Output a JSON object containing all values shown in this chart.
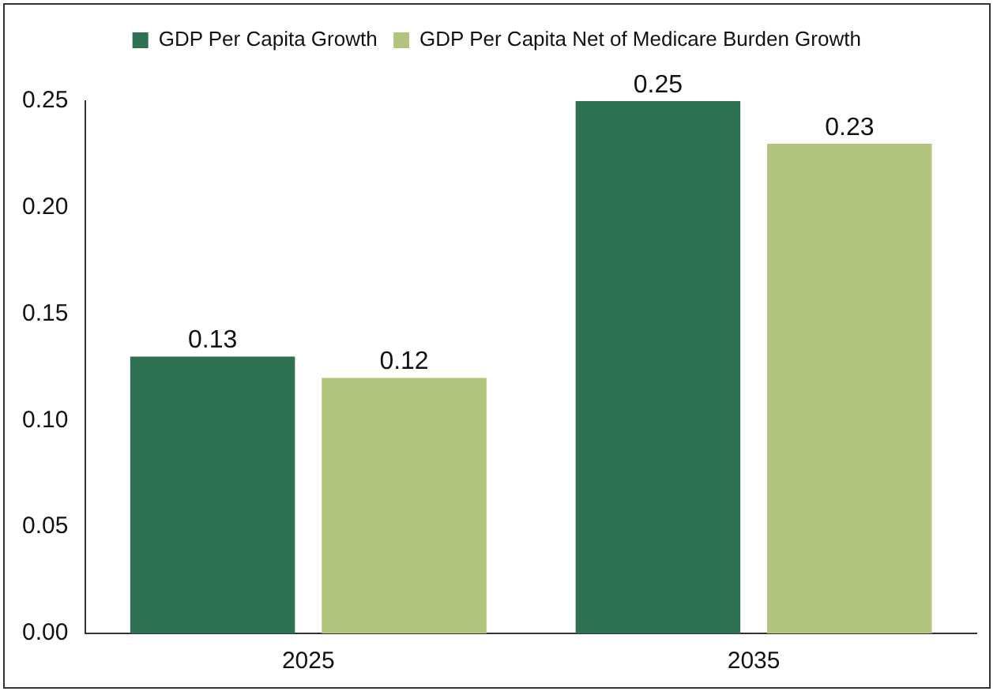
{
  "chart_data": {
    "type": "bar",
    "categories": [
      "2025",
      "2035"
    ],
    "series": [
      {
        "name": "GDP Per Capita Growth",
        "color": "#2e7152",
        "values": [
          0.13,
          0.25
        ]
      },
      {
        "name": "GDP Per Capita Net of Medicare Burden Growth",
        "color": "#b3c47f",
        "values": [
          0.12,
          0.23
        ]
      }
    ],
    "ylim": [
      0,
      0.25
    ],
    "yticks": [
      {
        "value": 0,
        "label": "0.00"
      },
      {
        "value": 0.05,
        "label": "0.05"
      },
      {
        "value": 0.1,
        "label": "0.10"
      },
      {
        "value": 0.15,
        "label": "0.15"
      },
      {
        "value": 0.2,
        "label": "0.20"
      },
      {
        "value": 0.25,
        "label": "0.25"
      }
    ],
    "grid": false,
    "legend": "top",
    "data_labels": true
  }
}
